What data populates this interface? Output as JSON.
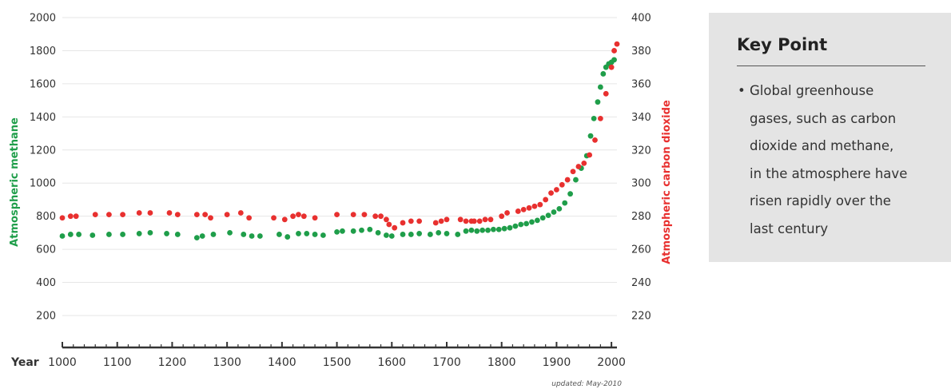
{
  "chart_data": {
    "type": "scatter",
    "x_label": "Year",
    "x_ticks": [
      1000,
      1100,
      1200,
      1300,
      1400,
      1500,
      1600,
      1700,
      1800,
      1900,
      2000
    ],
    "xlim": [
      1000,
      2010
    ],
    "left_axis": {
      "label": "Atmospheric methane",
      "ticks": [
        200,
        400,
        600,
        800,
        1000,
        1200,
        1400,
        1600,
        1800,
        2000
      ],
      "ylim": [
        100,
        2000
      ],
      "color": "#1f9e4a"
    },
    "right_axis": {
      "label": "Atmospheric carbon dioxide",
      "ticks": [
        220,
        240,
        260,
        280,
        300,
        320,
        340,
        360,
        380,
        400
      ],
      "ylim": [
        210,
        400
      ],
      "color": "#e8302f"
    },
    "series": [
      {
        "name": "Atmospheric methane",
        "axis": "left",
        "color": "#1f9e4a",
        "x": [
          1000,
          1015,
          1030,
          1055,
          1085,
          1110,
          1140,
          1160,
          1190,
          1210,
          1245,
          1255,
          1275,
          1305,
          1330,
          1345,
          1360,
          1395,
          1410,
          1430,
          1445,
          1460,
          1475,
          1500,
          1510,
          1530,
          1545,
          1560,
          1575,
          1590,
          1600,
          1620,
          1635,
          1650,
          1670,
          1685,
          1700,
          1720,
          1735,
          1745,
          1755,
          1765,
          1775,
          1785,
          1795,
          1805,
          1815,
          1825,
          1835,
          1845,
          1855,
          1865,
          1875,
          1885,
          1895,
          1905,
          1915,
          1925,
          1935,
          1945,
          1955,
          1962,
          1968,
          1975,
          1980,
          1985,
          1990,
          1995,
          2000,
          2005
        ],
        "y": [
          680,
          690,
          690,
          685,
          690,
          690,
          695,
          700,
          695,
          690,
          670,
          680,
          690,
          700,
          690,
          680,
          680,
          690,
          675,
          695,
          695,
          690,
          685,
          705,
          710,
          710,
          715,
          720,
          700,
          685,
          680,
          690,
          690,
          695,
          690,
          700,
          695,
          690,
          710,
          715,
          710,
          715,
          715,
          720,
          720,
          725,
          730,
          740,
          750,
          755,
          765,
          775,
          790,
          805,
          825,
          845,
          880,
          935,
          1020,
          1090,
          1165,
          1285,
          1390,
          1490,
          1580,
          1660,
          1700,
          1720,
          1730,
          1745
        ]
      },
      {
        "name": "Atmospheric carbon dioxide",
        "axis": "right",
        "color": "#e8302f",
        "x": [
          1000,
          1015,
          1025,
          1060,
          1085,
          1110,
          1140,
          1160,
          1195,
          1210,
          1245,
          1260,
          1270,
          1300,
          1325,
          1340,
          1385,
          1405,
          1420,
          1430,
          1440,
          1460,
          1500,
          1530,
          1550,
          1570,
          1580,
          1590,
          1595,
          1605,
          1620,
          1635,
          1650,
          1680,
          1690,
          1700,
          1725,
          1735,
          1745,
          1750,
          1760,
          1770,
          1780,
          1800,
          1810,
          1830,
          1840,
          1850,
          1860,
          1870,
          1880,
          1890,
          1900,
          1910,
          1920,
          1930,
          1940,
          1950,
          1960,
          1970,
          1980,
          1990,
          2000,
          2005,
          2010
        ],
        "y": [
          279,
          280,
          280,
          281,
          281,
          281,
          282,
          282,
          282,
          281,
          281,
          281,
          279,
          281,
          282,
          279,
          279,
          278,
          280,
          281,
          280,
          279,
          281,
          281,
          281,
          280,
          280,
          278,
          275,
          273,
          276,
          277,
          277,
          276,
          277,
          278,
          278,
          277,
          277,
          277,
          277,
          278,
          278,
          280,
          282,
          283,
          284,
          285,
          286,
          287,
          290,
          294,
          296,
          299,
          302,
          307,
          310,
          312,
          317,
          326,
          339,
          354,
          370,
          380,
          384
        ]
      }
    ],
    "annotation": "updated: May-2010"
  },
  "key_point": {
    "title": "Key Point",
    "lines": [
      "Global greenhouse",
      "gases, such as carbon",
      "dioxide and methane,",
      "in the atmosphere have",
      "risen rapidly over the",
      "last century"
    ],
    "bullet": "•"
  }
}
